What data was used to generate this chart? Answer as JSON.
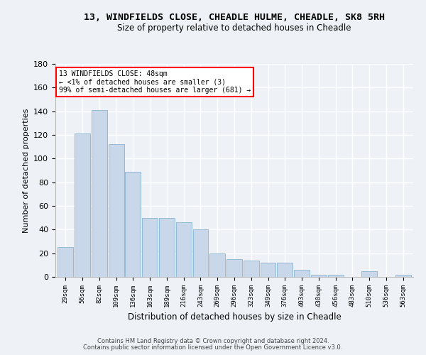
{
  "title": "13, WINDFIELDS CLOSE, CHEADLE HULME, CHEADLE, SK8 5RH",
  "subtitle": "Size of property relative to detached houses in Cheadle",
  "xlabel": "Distribution of detached houses by size in Cheadle",
  "ylabel": "Number of detached properties",
  "bar_color": "#c8d8ea",
  "bar_edge_color": "#8ab4d0",
  "categories": [
    "29sqm",
    "56sqm",
    "82sqm",
    "109sqm",
    "136sqm",
    "163sqm",
    "189sqm",
    "216sqm",
    "243sqm",
    "269sqm",
    "296sqm",
    "323sqm",
    "349sqm",
    "376sqm",
    "403sqm",
    "430sqm",
    "456sqm",
    "483sqm",
    "510sqm",
    "536sqm",
    "563sqm"
  ],
  "values": [
    25,
    121,
    141,
    112,
    89,
    50,
    50,
    46,
    40,
    20,
    15,
    14,
    12,
    12,
    6,
    2,
    2,
    0,
    5,
    0,
    2
  ],
  "ylim": [
    0,
    180
  ],
  "yticks": [
    0,
    20,
    40,
    60,
    80,
    100,
    120,
    140,
    160,
    180
  ],
  "annotation_title": "13 WINDFIELDS CLOSE: 48sqm",
  "annotation_line1": "← <1% of detached houses are smaller (3)",
  "annotation_line2": "99% of semi-detached houses are larger (681) →",
  "footer1": "Contains HM Land Registry data © Crown copyright and database right 2024.",
  "footer2": "Contains public sector information licensed under the Open Government Licence v3.0.",
  "background_color": "#eef2f7",
  "grid_color": "#ffffff"
}
